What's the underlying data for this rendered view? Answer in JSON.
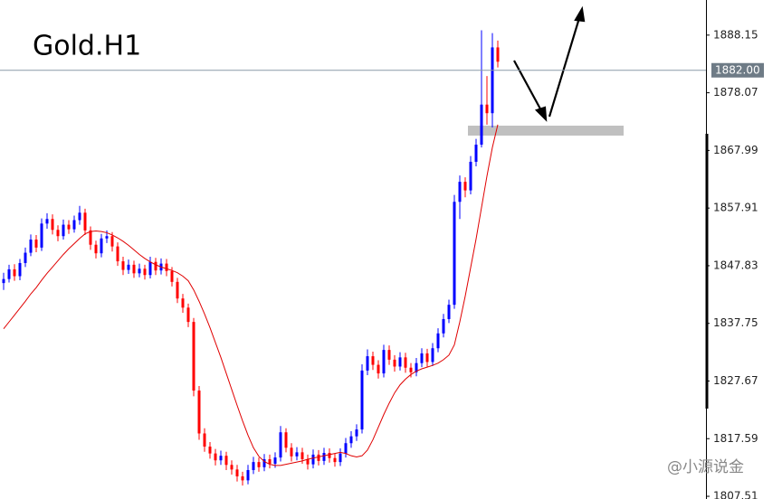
{
  "chart_data": {
    "type": "candlestick",
    "title": "Gold.H1",
    "up_color": "#0000ff",
    "down_color": "#ff0000",
    "ma_color": "#e00000",
    "ylim": [
      1807.04,
      1894.29
    ],
    "yticks": [
      1888.15,
      1878.07,
      1867.99,
      1857.91,
      1847.83,
      1837.75,
      1827.67,
      1817.59,
      1807.51
    ],
    "price_line": {
      "value": 1882,
      "label": "1882.00"
    },
    "open": [
      1844.8,
      1845.5,
      1847.2,
      1846.0,
      1848.3,
      1850.1,
      1852.4,
      1851.0,
      1855.2,
      1856.0,
      1854.1,
      1853.0,
      1855.0,
      1854.2,
      1855.8,
      1857.1,
      1854.0,
      1851.5,
      1850.0,
      1852.6,
      1853.0,
      1851.2,
      1848.6,
      1847.1,
      1848.0,
      1846.5,
      1847.3,
      1846.2,
      1848.5,
      1847.0,
      1848.2,
      1846.9,
      1845.0,
      1842.1,
      1840.5,
      1838.0,
      1826.0,
      1818.5,
      1816.2,
      1815.0,
      1813.8,
      1814.6,
      1813.0,
      1812.2,
      1811.0,
      1810.3,
      1812.1,
      1813.5,
      1812.6,
      1814.0,
      1813.2,
      1814.3,
      1818.7,
      1816.0,
      1814.5,
      1815.2,
      1814.0,
      1813.1,
      1814.8,
      1813.7,
      1815.1,
      1814.2,
      1813.5,
      1815.0,
      1816.8,
      1818.0,
      1819.2,
      1829.5,
      1832.0,
      1830.5,
      1829.0,
      1833.1,
      1831.4,
      1830.2,
      1831.8,
      1830.0,
      1829.2,
      1830.8,
      1832.5,
      1831.0,
      1833.4,
      1836.0,
      1838.5,
      1841.0,
      1859.0,
      1862.5,
      1861.0,
      1866.0,
      1869.0,
      1876.0,
      1874.5,
      1886.0
    ],
    "high": [
      1846.6,
      1848.0,
      1848.1,
      1849.0,
      1851.0,
      1853.3,
      1853.2,
      1856.1,
      1857.0,
      1856.8,
      1854.9,
      1855.9,
      1855.8,
      1856.6,
      1858.3,
      1857.8,
      1854.7,
      1852.2,
      1853.4,
      1854.0,
      1853.7,
      1851.9,
      1849.4,
      1848.9,
      1848.7,
      1848.2,
      1848.0,
      1849.4,
      1849.2,
      1849.1,
      1849.0,
      1847.6,
      1845.7,
      1842.9,
      1841.2,
      1838.7,
      1826.8,
      1819.4,
      1817.0,
      1815.8,
      1815.5,
      1815.3,
      1813.8,
      1813.0,
      1811.8,
      1813.0,
      1814.4,
      1814.3,
      1814.9,
      1814.8,
      1815.2,
      1819.8,
      1819.4,
      1816.8,
      1816.1,
      1816.0,
      1814.8,
      1815.7,
      1815.6,
      1816.0,
      1815.9,
      1815.0,
      1815.9,
      1817.7,
      1818.9,
      1820.1,
      1830.6,
      1833.2,
      1832.8,
      1831.3,
      1834.0,
      1833.9,
      1832.2,
      1832.7,
      1832.6,
      1830.8,
      1831.7,
      1833.4,
      1833.3,
      1834.3,
      1836.9,
      1839.4,
      1841.9,
      1860.2,
      1863.6,
      1863.3,
      1867.0,
      1870.0,
      1889.0,
      1881.0,
      1888.5,
      1887.2
    ],
    "low": [
      1843.6,
      1844.9,
      1845.2,
      1845.3,
      1847.6,
      1849.5,
      1850.2,
      1850.4,
      1854.3,
      1853.3,
      1852.1,
      1852.4,
      1853.4,
      1853.6,
      1855.0,
      1853.2,
      1850.6,
      1849.1,
      1849.3,
      1851.8,
      1850.3,
      1847.8,
      1846.2,
      1846.4,
      1845.7,
      1845.8,
      1845.4,
      1845.6,
      1846.2,
      1846.3,
      1846.0,
      1844.2,
      1841.3,
      1839.6,
      1837.1,
      1825.0,
      1817.4,
      1815.3,
      1814.1,
      1812.9,
      1813.0,
      1812.1,
      1811.3,
      1810.1,
      1809.4,
      1809.6,
      1811.4,
      1811.8,
      1811.9,
      1812.4,
      1812.5,
      1813.6,
      1815.2,
      1813.6,
      1813.8,
      1813.2,
      1812.2,
      1812.4,
      1812.9,
      1813.0,
      1813.4,
      1812.7,
      1812.8,
      1814.3,
      1816.0,
      1817.2,
      1818.5,
      1828.7,
      1829.6,
      1828.1,
      1828.3,
      1830.5,
      1829.3,
      1829.5,
      1829.1,
      1828.3,
      1828.5,
      1830.1,
      1830.2,
      1830.3,
      1832.7,
      1835.3,
      1837.8,
      1840.3,
      1856.0,
      1859.8,
      1860.3,
      1865.2,
      1868.5,
      1872.5,
      1872.0,
      1882.5
    ],
    "close": [
      1845.5,
      1847.2,
      1846.0,
      1848.3,
      1850.1,
      1852.4,
      1851.0,
      1855.2,
      1856.0,
      1854.1,
      1853.0,
      1855.0,
      1854.2,
      1855.8,
      1857.1,
      1854.0,
      1851.5,
      1850.0,
      1852.6,
      1853.0,
      1851.2,
      1848.6,
      1847.1,
      1848.0,
      1846.5,
      1847.3,
      1846.2,
      1848.5,
      1847.0,
      1848.2,
      1846.9,
      1845.0,
      1842.1,
      1840.5,
      1838.0,
      1826.0,
      1818.5,
      1816.2,
      1815.0,
      1813.8,
      1814.6,
      1813.0,
      1812.2,
      1811.0,
      1810.3,
      1812.1,
      1813.5,
      1812.6,
      1814.0,
      1813.2,
      1814.3,
      1818.7,
      1816.0,
      1814.5,
      1815.2,
      1814.0,
      1813.1,
      1814.8,
      1813.7,
      1815.1,
      1814.2,
      1813.5,
      1815.0,
      1816.8,
      1818.0,
      1819.2,
      1829.5,
      1832.0,
      1830.5,
      1829.0,
      1833.1,
      1831.4,
      1830.2,
      1831.8,
      1830.0,
      1829.2,
      1830.8,
      1832.5,
      1831.0,
      1833.4,
      1836.0,
      1838.5,
      1841.0,
      1859.0,
      1862.5,
      1861.0,
      1866.0,
      1869.0,
      1876.0,
      1874.5,
      1886.0,
      1883.5
    ],
    "ma": [
      1836.8,
      1838.0,
      1839.2,
      1840.4,
      1841.6,
      1842.9,
      1844.0,
      1845.3,
      1846.5,
      1847.6,
      1848.7,
      1849.8,
      1850.8,
      1851.7,
      1852.6,
      1853.4,
      1853.8,
      1853.9,
      1853.8,
      1853.6,
      1853.2,
      1852.7,
      1852.1,
      1851.4,
      1850.6,
      1849.8,
      1849.1,
      1848.5,
      1848.0,
      1847.6,
      1847.3,
      1847.0,
      1846.6,
      1846.0,
      1845.2,
      1843.6,
      1841.6,
      1839.4,
      1837.0,
      1834.4,
      1831.8,
      1829.0,
      1826.2,
      1823.4,
      1820.7,
      1818.2,
      1816.0,
      1814.5,
      1813.6,
      1813.1,
      1812.9,
      1812.9,
      1813.1,
      1813.3,
      1813.5,
      1813.7,
      1814.0,
      1814.2,
      1814.4,
      1814.6,
      1814.8,
      1815.0,
      1815.2,
      1815.0,
      1814.6,
      1814.4,
      1814.6,
      1815.6,
      1817.4,
      1819.6,
      1821.8,
      1823.8,
      1825.6,
      1827.0,
      1828.0,
      1828.8,
      1829.4,
      1829.8,
      1830.1,
      1830.4,
      1830.8,
      1831.4,
      1832.2,
      1834.0,
      1838.0,
      1842.5,
      1847.5,
      1852.5,
      1858.0,
      1863.5,
      1868.5,
      1872.5
    ]
  },
  "watermark": "@小源说金"
}
